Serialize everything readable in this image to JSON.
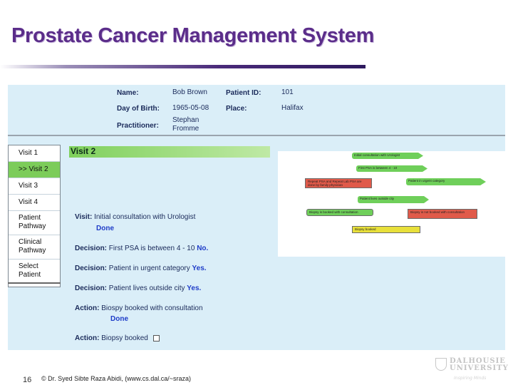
{
  "slide": {
    "title": "Prostate Cancer Management System",
    "slide_number": "16",
    "copyright": "© Dr. Syed Sibte Raza Abidi, (www.cs.dal.ca/~sraza)"
  },
  "patient": {
    "name_label": "Name:",
    "name_value": "Bob Brown",
    "id_label": "Patient ID:",
    "id_value": "101",
    "dob_label": "Day of Birth:",
    "dob_value": "1965-05-08",
    "place_label": "Place:",
    "place_value": "Halifax",
    "practitioner_label": "Practitioner:",
    "practitioner_line1": "Stephan",
    "practitioner_line2": "Fromme"
  },
  "nav": {
    "items": [
      {
        "label": "Visit 1"
      },
      {
        "label": ">> Visit 2"
      },
      {
        "label": "Visit 3"
      },
      {
        "label": "Visit 4"
      },
      {
        "line1": "Patient",
        "line2": "Pathway"
      },
      {
        "line1": "Clinical",
        "line2": "Pathway"
      },
      {
        "line1": "Select",
        "line2": "Patient"
      }
    ]
  },
  "visit": {
    "title": "Visit 2",
    "rows": [
      {
        "label": "Visit:",
        "text": "Initial consultation with Urologist",
        "status": "Done"
      },
      {
        "label": "Decision:",
        "text": "First PSA is between 4 - 10",
        "status": "No."
      },
      {
        "label": "Decision:",
        "text": "Patient in urgent category",
        "status": "Yes."
      },
      {
        "label": "Decision:",
        "text": "Patient lives outside city",
        "status": "Yes."
      },
      {
        "label": "Action:",
        "text": "Biospy booked with consultation",
        "status": "Done"
      },
      {
        "label": "Action:",
        "text": "Biopsy booked"
      }
    ]
  },
  "flowchart": {
    "nodes": [
      {
        "text": "Initial consultation with Urologist",
        "color": "#6fcf5a"
      },
      {
        "text": "First PSA is between 4 - 10",
        "color": "#6fcf5a"
      },
      {
        "text": "Repeat PSA and Repeat Lab PSA are done by family physician",
        "color": "#e05a4a"
      },
      {
        "text": "Patient in urgent category",
        "color": "#6fcf5a"
      },
      {
        "text": "Patient lives outside city",
        "color": "#6fcf5a"
      },
      {
        "text": "Biopsy is booked with consultation",
        "color": "#6fcf5a"
      },
      {
        "text": "Biopsy is not booked with consultation",
        "color": "#e05a4a"
      },
      {
        "text": "Biopsy booked",
        "color": "#e8e03a"
      }
    ]
  },
  "logo": {
    "line1": "DALHOUSIE",
    "line2": "UNIVERSITY",
    "tagline": "Inspiring Minds"
  }
}
